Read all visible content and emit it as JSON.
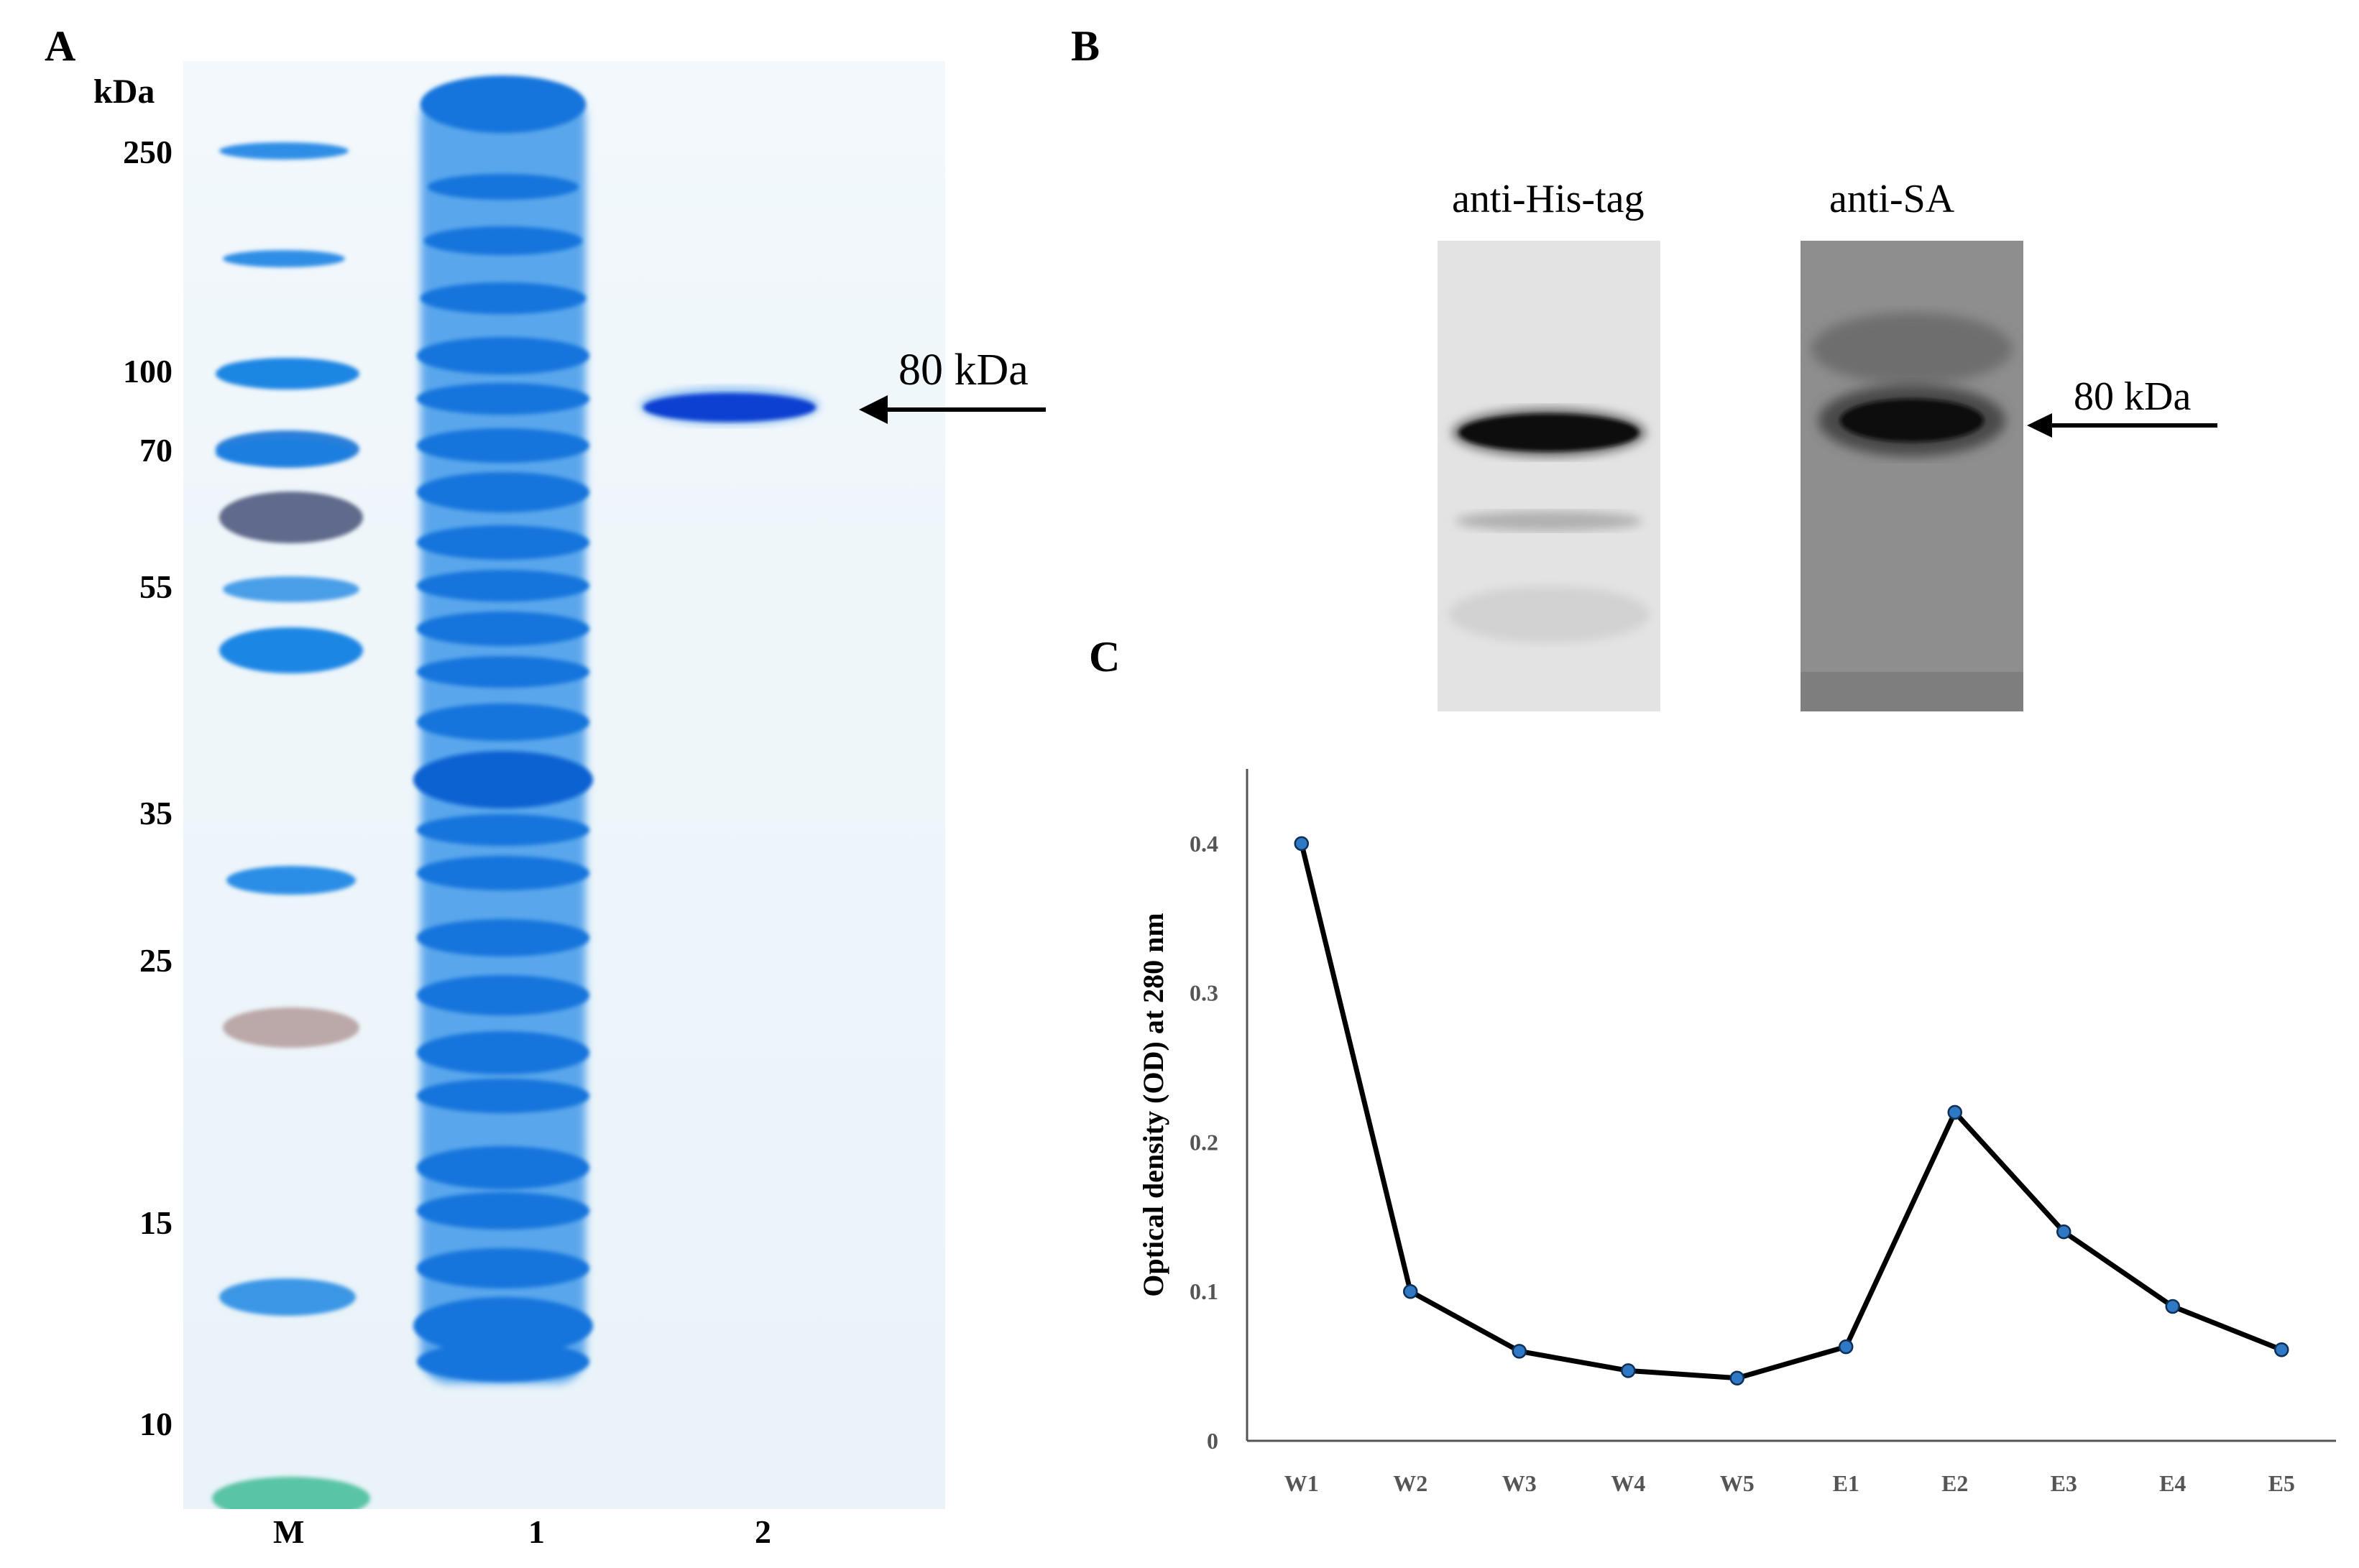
{
  "panels": {
    "a": "A",
    "b": "B",
    "c": "C"
  },
  "gel": {
    "unit_label": "kDa",
    "markers": [
      "250",
      "100",
      "70",
      "55",
      "35",
      "25",
      "15",
      "10"
    ],
    "lanes": [
      "M",
      "1",
      "2"
    ],
    "arrow_label": "80 kDa",
    "colors": {
      "stain": "#1a7fe0",
      "band": "#0b3fd1",
      "background": "#eef6fb"
    }
  },
  "blot": {
    "titles": [
      "anti-His-tag",
      "anti-SA"
    ],
    "arrow_label": "80 kDa"
  },
  "chart_data": {
    "type": "line",
    "ylabel": "Optical density (OD) at 280 nm",
    "xlabel": "",
    "categories": [
      "W1",
      "W2",
      "W3",
      "W4",
      "W5",
      "E1",
      "E2",
      "E3",
      "E4",
      "E5"
    ],
    "series": [
      {
        "values": [
          0.4,
          0.1,
          0.06,
          0.047,
          0.042,
          0.063,
          0.22,
          0.14,
          0.09,
          0.061
        ]
      }
    ],
    "ylim": [
      0,
      0.45
    ],
    "yticks": [
      "0",
      "0.1",
      "0.2",
      "0.3",
      "0.4"
    ],
    "grid": false,
    "colors": {
      "line": "#000000",
      "marker": "#2f78c4",
      "axis": "#555555"
    }
  }
}
